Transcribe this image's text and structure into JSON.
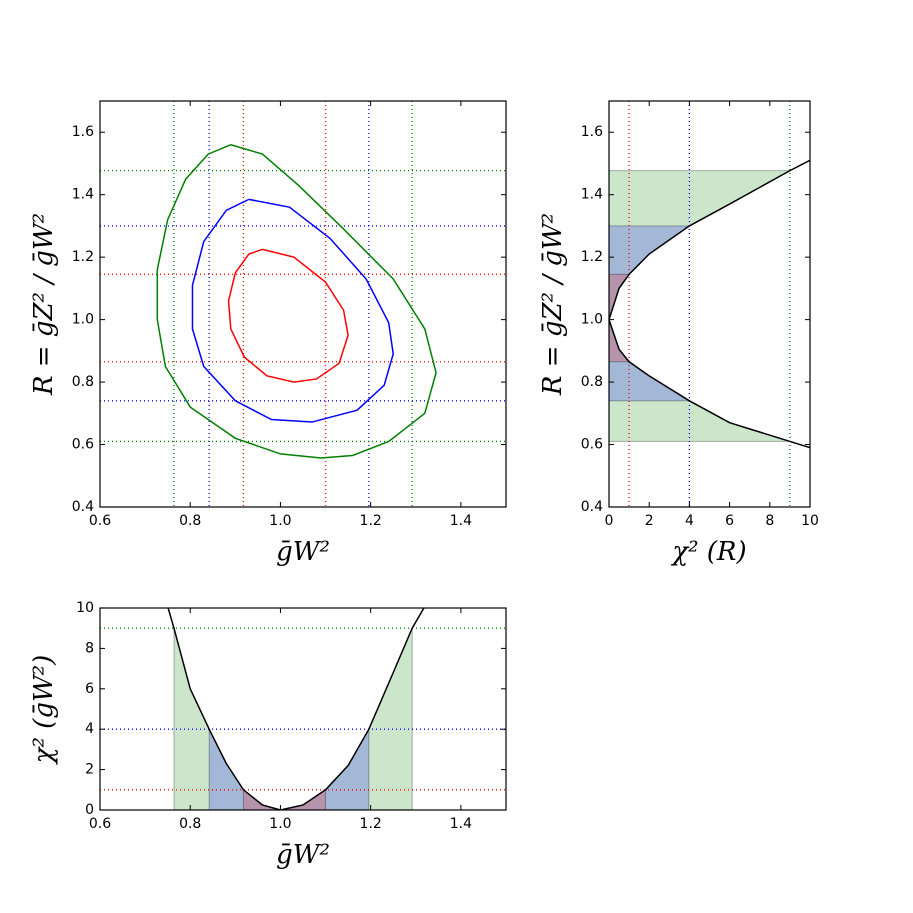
{
  "chart_data": [
    {
      "type": "contour",
      "xlabel": "ḡW²",
      "ylabel": "R = ḡZ² / ḡW²",
      "xlim": [
        0.6,
        1.5
      ],
      "ylim": [
        0.4,
        1.7
      ],
      "xticks": [
        0.6,
        0.8,
        {
          "value": 1,
          "label": "1.0"
        },
        1.2,
        1.4
      ],
      "yticks": [
        0.4,
        0.6,
        0.8,
        {
          "value": 1,
          "label": "1.0"
        },
        1.2,
        1.4,
        1.6
      ],
      "series": [
        {
          "color": "#ff0000",
          "x": [
            0.96,
            1.03,
            1.1,
            1.14,
            1.15,
            1.13,
            1.08,
            1.03,
            0.97,
            0.92,
            0.89,
            0.885,
            0.9,
            0.93,
            0.96
          ],
          "values": [
            1.225,
            1.2,
            1.12,
            1.03,
            0.95,
            0.86,
            0.81,
            0.8,
            0.82,
            0.88,
            0.97,
            1.06,
            1.15,
            1.21,
            1.225
          ]
        },
        {
          "color": "#0000ff",
          "x": [
            0.93,
            1.02,
            1.11,
            1.19,
            1.24,
            1.25,
            1.23,
            1.17,
            1.07,
            0.98,
            0.9,
            0.83,
            0.805,
            0.805,
            0.83,
            0.88,
            0.93
          ],
          "values": [
            1.385,
            1.36,
            1.26,
            1.13,
            0.99,
            0.89,
            0.79,
            0.71,
            0.672,
            0.68,
            0.74,
            0.85,
            0.97,
            1.11,
            1.25,
            1.35,
            1.385
          ]
        },
        {
          "color": "#008000",
          "x": [
            0.89,
            0.96,
            1.04,
            1.14,
            1.25,
            1.32,
            1.345,
            1.32,
            1.24,
            1.16,
            1.09,
            1.0,
            0.9,
            0.8,
            0.745,
            0.727,
            0.727,
            0.75,
            0.79,
            0.84,
            0.89
          ],
          "values": [
            1.56,
            1.53,
            1.43,
            1.29,
            1.13,
            0.97,
            0.83,
            0.7,
            0.61,
            0.565,
            0.557,
            0.57,
            0.62,
            0.72,
            0.85,
            1.0,
            1.16,
            1.32,
            1.45,
            1.53,
            1.56
          ]
        }
      ],
      "vlines": [
        {
          "value": 0.918,
          "color": "#ff0000"
        },
        {
          "value": 1.1,
          "color": "#ff0000"
        },
        {
          "value": 0.842,
          "color": "#0000ff"
        },
        {
          "value": 1.196,
          "color": "#0000ff"
        },
        {
          "value": 0.764,
          "color": "#008000"
        },
        {
          "value": 1.292,
          "color": "#008000"
        }
      ],
      "hlines": [
        {
          "value": 0.865,
          "color": "#ff0000"
        },
        {
          "value": 1.145,
          "color": "#ff0000"
        },
        {
          "value": 0.74,
          "color": "#0000ff"
        },
        {
          "value": 1.3,
          "color": "#0000ff"
        },
        {
          "value": 0.61,
          "color": "#008000"
        },
        {
          "value": 1.477,
          "color": "#008000"
        }
      ]
    },
    {
      "type": "line",
      "xlabel": "χ² (R)",
      "ylabel": "R = ḡZ² / ḡW²",
      "xlim": [
        0,
        10
      ],
      "ylim": [
        0.4,
        1.7
      ],
      "xticks": [
        0,
        2,
        4,
        6,
        8,
        10
      ],
      "yticks": [
        0.4,
        0.6,
        0.8,
        {
          "value": 1,
          "label": "1.0"
        },
        1.2,
        1.4,
        1.6
      ],
      "series": [
        {
          "color": "#000000",
          "x": [
            10,
            9,
            6,
            4,
            2,
            1,
            0.5,
            0,
            0.5,
            1,
            2,
            4,
            6,
            9,
            10
          ],
          "values": [
            0.59,
            0.61,
            0.67,
            0.74,
            0.82,
            0.865,
            0.905,
            1.0,
            1.1,
            1.145,
            1.21,
            1.3,
            1.37,
            1.477,
            1.51
          ]
        }
      ],
      "band_axis": "y",
      "bands": [
        {
          "range": [
            0.61,
            1.477
          ],
          "color": "#008000"
        },
        {
          "range": [
            0.74,
            1.3
          ],
          "color": "#0000ff"
        },
        {
          "range": [
            0.865,
            1.145
          ],
          "color": "#ff0000"
        }
      ],
      "vlines": [
        {
          "value": 1,
          "color": "#ff0000"
        },
        {
          "value": 4,
          "color": "#0000ff"
        },
        {
          "value": 9,
          "color": "#008000"
        }
      ],
      "hlines": []
    },
    {
      "type": "line",
      "xlabel": "ḡW²",
      "ylabel": "χ² (ḡW²)",
      "xlim": [
        0.6,
        1.5
      ],
      "ylim": [
        0,
        10
      ],
      "xticks": [
        0.6,
        0.8,
        {
          "value": 1,
          "label": "1.0"
        },
        1.2,
        1.4
      ],
      "yticks": [
        0,
        2,
        4,
        6,
        8,
        10
      ],
      "series": [
        {
          "color": "#000000",
          "x": [
            0.751,
            0.764,
            0.8,
            0.842,
            0.88,
            0.918,
            0.96,
            1.0,
            1.05,
            1.1,
            1.15,
            1.196,
            1.25,
            1.292,
            1.318
          ],
          "values": [
            10,
            9,
            6,
            4,
            2.3,
            1,
            0.25,
            0,
            0.25,
            1,
            2.2,
            4,
            6.8,
            9,
            10
          ]
        }
      ],
      "band_axis": "x",
      "bands": [
        {
          "range": [
            0.764,
            1.292
          ],
          "color": "#008000"
        },
        {
          "range": [
            0.842,
            1.196
          ],
          "color": "#0000ff"
        },
        {
          "range": [
            0.918,
            1.1
          ],
          "color": "#ff0000"
        }
      ],
      "vlines": [],
      "hlines": [
        {
          "value": 1,
          "color": "#ff0000"
        },
        {
          "value": 4,
          "color": "#0000ff"
        },
        {
          "value": 9,
          "color": "#008000"
        }
      ]
    }
  ]
}
